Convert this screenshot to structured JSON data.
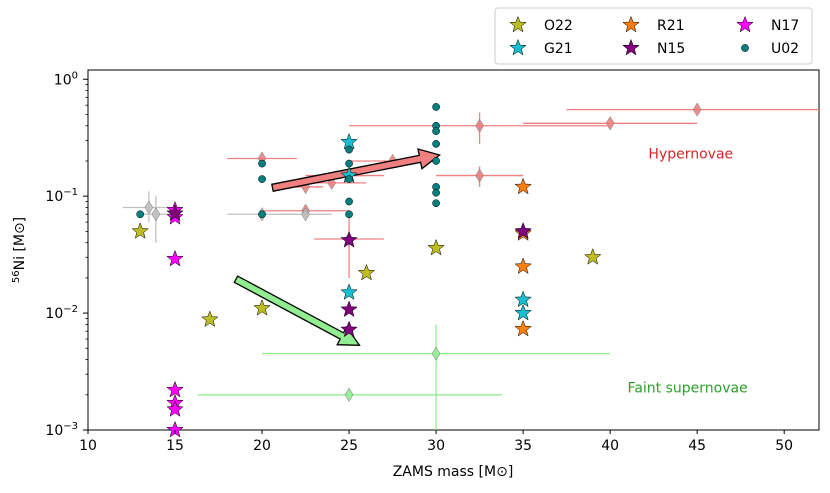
{
  "chart_data": {
    "type": "scatter",
    "xlabel": "ZAMS mass [M⊙]",
    "ylabel": "56Ni [M⊙]",
    "ylabel_sup": "56",
    "ylabel_main": "Ni [M⊙]",
    "xlim": [
      10,
      52
    ],
    "ylim": [
      0.001,
      1.2
    ],
    "yscale": "log",
    "x_ticks": [
      10,
      15,
      20,
      25,
      30,
      35,
      40,
      45,
      50
    ],
    "y_ticks": [
      {
        "value": 0.001,
        "label_base": "10",
        "label_exp": "−3"
      },
      {
        "value": 0.01,
        "label_base": "10",
        "label_exp": "−2"
      },
      {
        "value": 0.1,
        "label_base": "10",
        "label_exp": "−1"
      },
      {
        "value": 1,
        "label_base": "10",
        "label_exp": "0"
      }
    ],
    "legend": {
      "placement": "above-right",
      "entries": [
        {
          "label": "O22",
          "marker": "star",
          "color": "#bcbd22"
        },
        {
          "label": "R21",
          "marker": "star",
          "color": "#ff7f0e"
        },
        {
          "label": "N17",
          "marker": "star",
          "color": "#ff00ff"
        },
        {
          "label": "G21",
          "marker": "star",
          "color": "#17becf"
        },
        {
          "label": "N15",
          "marker": "star",
          "color": "#800080"
        },
        {
          "label": "U02",
          "marker": "circle",
          "color": "#008080"
        }
      ]
    },
    "annotations": [
      {
        "text": "Hypernovae",
        "x": 42.2,
        "y": 0.21,
        "color": "#d62728"
      },
      {
        "text": "Faint supernovae",
        "x": 41,
        "y": 0.0021,
        "color": "#2ca02c"
      }
    ],
    "arrows": [
      {
        "from": [
          20.6,
          0.118
        ],
        "to": [
          30.2,
          0.225
        ],
        "color": "#f08080"
      },
      {
        "from": [
          18.5,
          0.0195
        ],
        "to": [
          25.6,
          0.0053
        ],
        "color": "#90ee90"
      }
    ],
    "error_observations": [
      {
        "group": "hypernova",
        "color": "#f08080",
        "points": [
          {
            "x": 45,
            "y": 0.55,
            "xerr": [
              37.5,
              55
            ]
          },
          {
            "x": 40,
            "y": 0.42,
            "xerr": [
              35,
              45
            ]
          },
          {
            "x": 32.5,
            "y": 0.4,
            "xerr": [
              25,
              40
            ],
            "yerr": [
              0.28,
              0.52
            ]
          },
          {
            "x": 32.5,
            "y": 0.15,
            "xerr": [
              30,
              35
            ],
            "yerr": [
              0.12,
              0.18
            ]
          },
          {
            "x": 27.5,
            "y": 0.2,
            "xerr": [
              25,
              30
            ]
          },
          {
            "x": 25,
            "y": 0.15,
            "xerr": [
              24,
              26
            ]
          },
          {
            "x": 25,
            "y": 0.15,
            "xerr": [
              22.5,
              27
            ],
            "yerr": [
              0.13,
              0.17
            ]
          },
          {
            "x": 24,
            "y": 0.13,
            "xerr": [
              22,
              26
            ]
          },
          {
            "x": 22.5,
            "y": 0.12,
            "xerr": [
              21.5,
              23.5
            ]
          },
          {
            "x": 20,
            "y": 0.21,
            "xerr": [
              18,
              22
            ]
          },
          {
            "x": 22.5,
            "y": 0.075,
            "xerr": [
              20,
              25
            ]
          },
          {
            "x": 25,
            "y": 0.043,
            "xerr": [
              23,
              27
            ],
            "yerr": [
              0.02,
              0.065
            ]
          }
        ]
      },
      {
        "group": "normal",
        "color": "#c0c0c0",
        "points": [
          {
            "x": 13.5,
            "y": 0.08,
            "xerr": [
              12,
              15
            ],
            "yerr": [
              0.06,
              0.11
            ]
          },
          {
            "x": 13.9,
            "y": 0.07,
            "xerr": [
              13,
              15
            ],
            "yerr": [
              0.04,
              0.1
            ]
          },
          {
            "x": 20,
            "y": 0.07,
            "xerr": [
              18,
              22
            ]
          },
          {
            "x": 22.5,
            "y": 0.07,
            "xerr": [
              21,
              24
            ]
          }
        ]
      },
      {
        "group": "faint",
        "color": "#90ee90",
        "points": [
          {
            "x": 30,
            "y": 0.0045,
            "xerr": [
              20,
              40
            ],
            "yerr": [
              0.001,
              0.008
            ]
          },
          {
            "x": 25,
            "y": 0.002,
            "xerr": [
              16.3,
              33.8
            ]
          }
        ]
      }
    ],
    "series": [
      {
        "name": "O22",
        "marker": "star",
        "color": "#bcbd22",
        "points": [
          {
            "x": 13,
            "y": 0.05
          },
          {
            "x": 17,
            "y": 0.0088
          },
          {
            "x": 20,
            "y": 0.011
          },
          {
            "x": 26,
            "y": 0.022
          },
          {
            "x": 30,
            "y": 0.036
          },
          {
            "x": 39,
            "y": 0.03
          }
        ]
      },
      {
        "name": "R21",
        "marker": "star",
        "color": "#ff7f0e",
        "points": [
          {
            "x": 35,
            "y": 0.12
          },
          {
            "x": 35,
            "y": 0.048
          },
          {
            "x": 35,
            "y": 0.025
          },
          {
            "x": 35,
            "y": 0.0073
          }
        ]
      },
      {
        "name": "N17",
        "marker": "star",
        "color": "#ff00ff",
        "points": [
          {
            "x": 15,
            "y": 0.076
          },
          {
            "x": 15,
            "y": 0.066
          },
          {
            "x": 15,
            "y": 0.029
          },
          {
            "x": 15,
            "y": 0.0022
          },
          {
            "x": 15,
            "y": 0.0017
          },
          {
            "x": 15,
            "y": 0.0015
          },
          {
            "x": 15,
            "y": 0.001
          }
        ]
      },
      {
        "name": "G21",
        "marker": "star",
        "color": "#17becf",
        "points": [
          {
            "x": 25,
            "y": 0.29
          },
          {
            "x": 25,
            "y": 0.15
          },
          {
            "x": 25,
            "y": 0.015
          },
          {
            "x": 35,
            "y": 0.05
          },
          {
            "x": 35,
            "y": 0.013
          },
          {
            "x": 35,
            "y": 0.01
          }
        ]
      },
      {
        "name": "N15",
        "marker": "star",
        "color": "#800080",
        "points": [
          {
            "x": 15,
            "y": 0.071
          },
          {
            "x": 25,
            "y": 0.042
          },
          {
            "x": 25,
            "y": 0.0107
          },
          {
            "x": 25,
            "y": 0.0072
          },
          {
            "x": 35,
            "y": 0.05
          }
        ]
      },
      {
        "name": "U02",
        "marker": "circle",
        "color": "#008080",
        "points": [
          {
            "x": 13,
            "y": 0.07
          },
          {
            "x": 20,
            "y": 0.19
          },
          {
            "x": 20,
            "y": 0.14
          },
          {
            "x": 20,
            "y": 0.07
          },
          {
            "x": 25,
            "y": 0.25
          },
          {
            "x": 25,
            "y": 0.19
          },
          {
            "x": 25,
            "y": 0.14
          },
          {
            "x": 25,
            "y": 0.09
          },
          {
            "x": 25,
            "y": 0.07
          },
          {
            "x": 30,
            "y": 0.58
          },
          {
            "x": 30,
            "y": 0.4
          },
          {
            "x": 30,
            "y": 0.36
          },
          {
            "x": 30,
            "y": 0.28
          },
          {
            "x": 30,
            "y": 0.2
          },
          {
            "x": 30,
            "y": 0.12
          },
          {
            "x": 30,
            "y": 0.107
          },
          {
            "x": 30,
            "y": 0.087
          }
        ]
      }
    ]
  }
}
